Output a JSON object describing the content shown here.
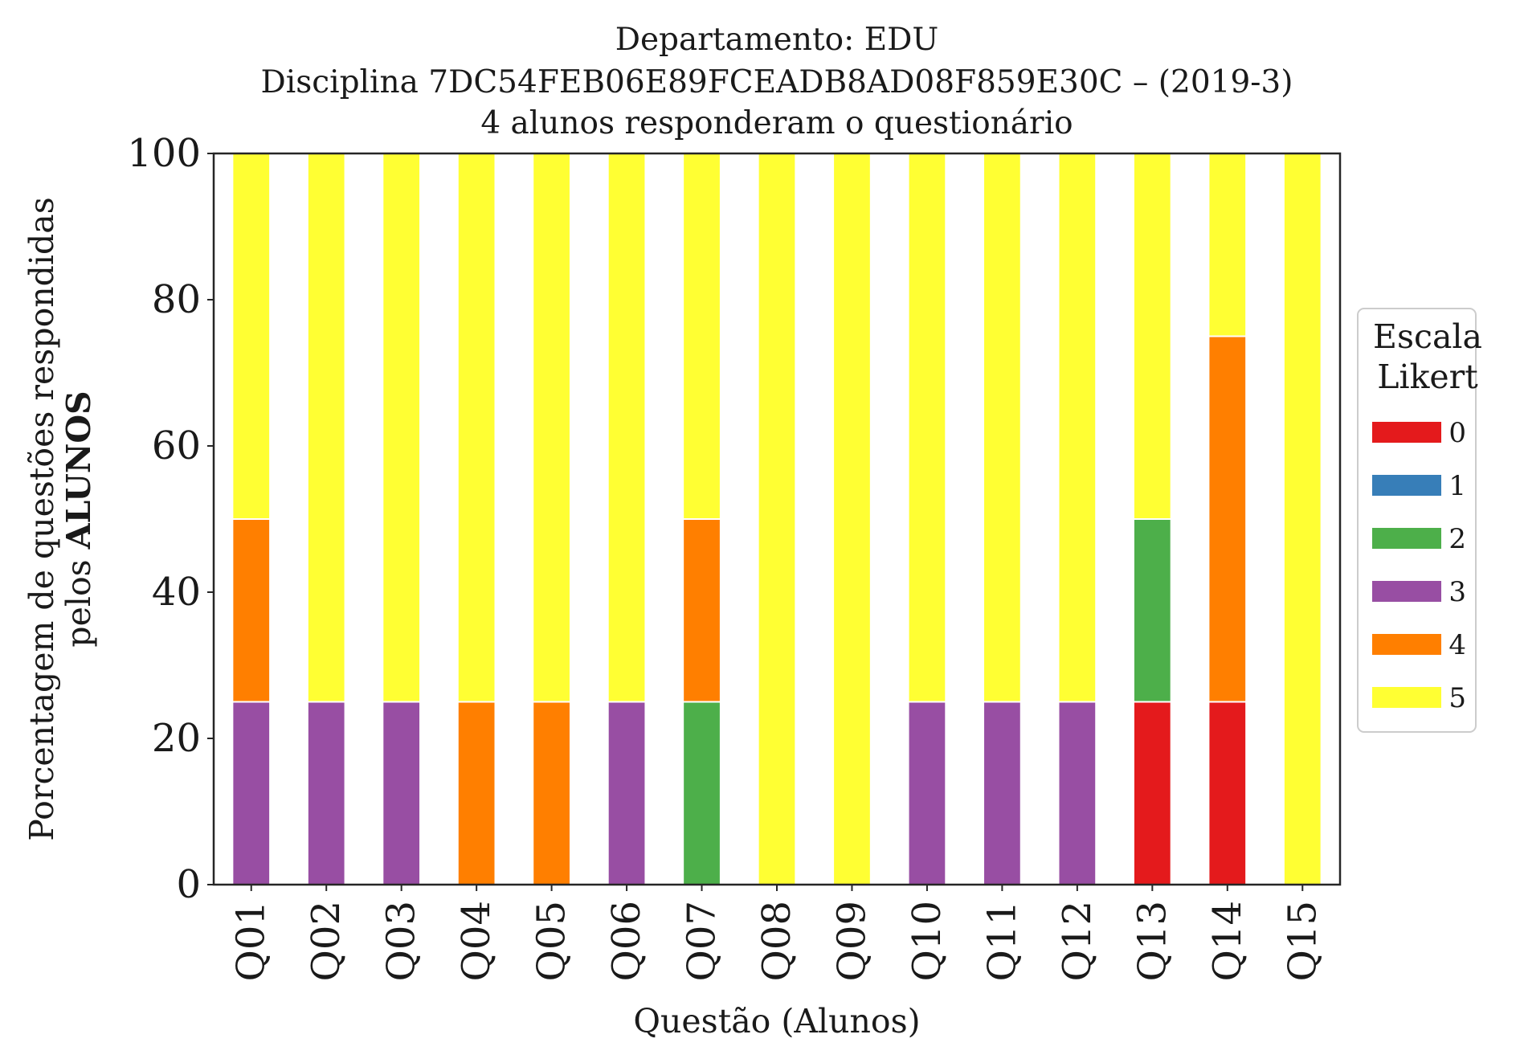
{
  "chart_data": {
    "type": "bar",
    "stacked": true,
    "title_lines": [
      "Departamento: EDU",
      "Disciplina 7DC54FEB06E89FCEADB8AD08F859E30C – (2019-3)",
      "4 alunos responderam o questionário"
    ],
    "xlabel": "Questão (Alunos)",
    "ylabel_line1": "Porcentagem de questões respondidas",
    "ylabel_line2_prefix": "pelos ",
    "ylabel_line2_bold": "ALUNOS",
    "ylim": [
      0,
      100
    ],
    "yticks": [
      0,
      20,
      40,
      60,
      80,
      100
    ],
    "grid": false,
    "categories": [
      "Q01",
      "Q02",
      "Q03",
      "Q04",
      "Q05",
      "Q06",
      "Q07",
      "Q08",
      "Q09",
      "Q10",
      "Q11",
      "Q12",
      "Q13",
      "Q14",
      "Q15"
    ],
    "legend": {
      "title_lines": [
        "Escala",
        "Likert"
      ],
      "placement": "right-center"
    },
    "series": [
      {
        "name": "0",
        "color": "#e41a1c",
        "values": [
          0,
          0,
          0,
          0,
          0,
          0,
          0,
          0,
          0,
          0,
          0,
          0,
          25,
          25,
          0
        ]
      },
      {
        "name": "1",
        "color": "#377eb8",
        "values": [
          0,
          0,
          0,
          0,
          0,
          0,
          0,
          0,
          0,
          0,
          0,
          0,
          0,
          0,
          0
        ]
      },
      {
        "name": "2",
        "color": "#4daf4a",
        "values": [
          0,
          0,
          0,
          0,
          0,
          0,
          25,
          0,
          0,
          0,
          0,
          0,
          25,
          0,
          0
        ]
      },
      {
        "name": "3",
        "color": "#984ea3",
        "values": [
          25,
          25,
          25,
          0,
          0,
          25,
          0,
          0,
          0,
          25,
          25,
          25,
          0,
          0,
          0
        ]
      },
      {
        "name": "4",
        "color": "#ff7f00",
        "values": [
          25,
          0,
          0,
          25,
          25,
          0,
          25,
          0,
          0,
          0,
          0,
          0,
          0,
          50,
          0
        ]
      },
      {
        "name": "5",
        "color": "#ffff33",
        "values": [
          50,
          75,
          75,
          75,
          75,
          75,
          50,
          100,
          100,
          75,
          75,
          75,
          50,
          25,
          100
        ]
      }
    ]
  }
}
